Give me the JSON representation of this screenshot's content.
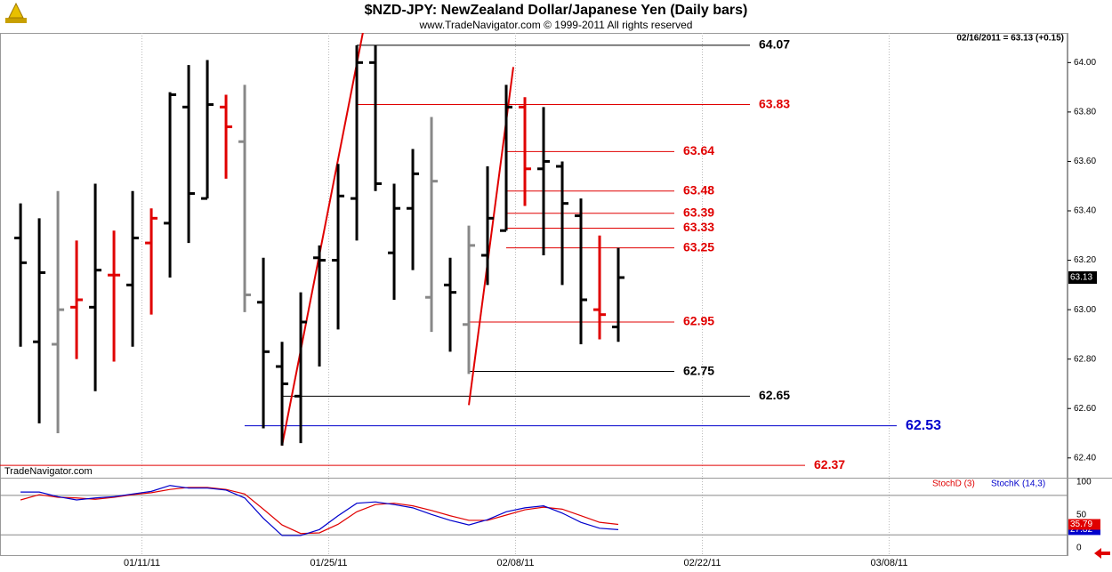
{
  "chart_data": [
    {
      "type": "ohlc",
      "title": "$NZD-JPY:  NewZealand Dollar/Japanese Yen  (Daily bars)",
      "subtitle": "www.TradeNavigator.com © 1999-2011 All rights reserved",
      "info": "02/16/2011 = 63.13 (+0.15)",
      "watermark": "TradeNavigator.com",
      "x": [
        0,
        1,
        2,
        3,
        4,
        5,
        6,
        7,
        8,
        9,
        10,
        11,
        12,
        13,
        14,
        15,
        16,
        17,
        18,
        19,
        20,
        21,
        22,
        23,
        24,
        25,
        26,
        27,
        28,
        29,
        30,
        31,
        32
      ],
      "open": [
        63.29,
        62.87,
        62.86,
        63.01,
        63.01,
        63.14,
        63.1,
        63.27,
        63.35,
        63.82,
        63.45,
        63.82,
        63.68,
        63.03,
        62.77,
        62.65,
        63.21,
        63.2,
        63.45,
        64.0,
        63.23,
        63.41,
        63.05,
        63.1,
        62.94,
        63.22,
        63.32,
        63.82,
        63.57,
        63.58,
        63.38,
        63.0,
        62.93
      ],
      "high": [
        63.43,
        63.37,
        63.48,
        63.28,
        63.51,
        63.32,
        63.48,
        63.41,
        63.88,
        63.99,
        64.01,
        63.87,
        63.91,
        63.21,
        62.87,
        63.07,
        63.26,
        63.59,
        64.07,
        64.07,
        63.51,
        63.65,
        63.78,
        63.21,
        63.34,
        63.58,
        63.91,
        63.86,
        63.82,
        63.6,
        63.45,
        63.3,
        63.25
      ],
      "low": [
        62.85,
        62.54,
        62.5,
        62.8,
        62.67,
        62.79,
        62.85,
        62.98,
        63.13,
        63.27,
        63.45,
        63.53,
        62.99,
        62.52,
        62.45,
        62.46,
        62.77,
        62.92,
        63.28,
        63.48,
        63.04,
        63.16,
        62.91,
        62.83,
        62.74,
        63.1,
        63.32,
        63.42,
        63.22,
        63.1,
        62.86,
        62.88,
        62.87
      ],
      "close": [
        63.19,
        63.15,
        63.0,
        63.04,
        63.16,
        63.14,
        63.29,
        63.37,
        63.87,
        63.47,
        63.83,
        63.74,
        63.06,
        62.83,
        62.7,
        62.95,
        63.2,
        63.46,
        64.0,
        63.51,
        63.41,
        63.55,
        63.52,
        63.07,
        63.26,
        63.37,
        63.82,
        63.57,
        63.6,
        63.43,
        63.04,
        62.98,
        63.13
      ],
      "colors": [
        "#000000",
        "#000000",
        "#888888",
        "#e00000",
        "#000000",
        "#e00000",
        "#000000",
        "#e00000",
        "#000000",
        "#000000",
        "#000000",
        "#e00000",
        "#888888",
        "#000000",
        "#000000",
        "#000000",
        "#000000",
        "#000000",
        "#000000",
        "#000000",
        "#000000",
        "#000000",
        "#888888",
        "#000000",
        "#888888",
        "#000000",
        "#000000",
        "#e00000",
        "#000000",
        "#000000",
        "#000000",
        "#e00000",
        "#000000"
      ],
      "levels": [
        {
          "value": 64.07,
          "color": "#000000"
        },
        {
          "value": 63.83,
          "color": "#e00000"
        },
        {
          "value": 63.64,
          "color": "#e00000"
        },
        {
          "value": 63.48,
          "color": "#e00000"
        },
        {
          "value": 63.39,
          "color": "#e00000"
        },
        {
          "value": 63.33,
          "color": "#e00000"
        },
        {
          "value": 63.25,
          "color": "#e00000"
        },
        {
          "value": 62.95,
          "color": "#e00000"
        },
        {
          "value": 62.75,
          "color": "#000000"
        },
        {
          "value": 62.65,
          "color": "#000000"
        },
        {
          "value": 62.53,
          "color": "#0000cc"
        },
        {
          "value": 62.37,
          "color": "#e00000"
        }
      ],
      "xlim": [
        -1.1,
        56.05
      ],
      "xticks": [
        {
          "value": 6.5,
          "label": "01/11/11"
        },
        {
          "value": 16.5,
          "label": "01/25/11"
        },
        {
          "value": 26.5,
          "label": "02/08/11"
        },
        {
          "value": 36.5,
          "label": "02/22/11"
        },
        {
          "value": 46.5,
          "label": "03/08/11"
        }
      ],
      "ylim": [
        62.32,
        64.12
      ],
      "yticks": [
        {
          "value": 62.4,
          "label": "62.40"
        },
        {
          "value": 62.6,
          "label": "62.60"
        },
        {
          "value": 62.8,
          "label": "62.80"
        },
        {
          "value": 63,
          "label": "63.00"
        },
        {
          "value": 63.2,
          "label": "63.20"
        },
        {
          "value": 63.4,
          "label": "63.40"
        },
        {
          "value": 63.6,
          "label": "63.60"
        },
        {
          "value": 63.8,
          "label": "63.80"
        },
        {
          "value": 64,
          "label": "64.00"
        }
      ]
    },
    {
      "type": "line",
      "ylim": [
        -12.2,
        106.8
      ],
      "yticks": [
        0,
        50,
        100
      ],
      "reference_lines": [
        80,
        20
      ],
      "series": [
        {
          "name": "StochD (3)",
          "color": "#e00000",
          "values": [
            73,
            81,
            77,
            76,
            74,
            77,
            81,
            84,
            89,
            92,
            92,
            89,
            82,
            59,
            35,
            22,
            23,
            36,
            55,
            66,
            68,
            64,
            57,
            49,
            42,
            42,
            50,
            58,
            62,
            59,
            49,
            39,
            35.79
          ]
        },
        {
          "name": "StochK (14,3)",
          "color": "#0000cc",
          "values": [
            85,
            85,
            78,
            73,
            76,
            78,
            82,
            86,
            95,
            91,
            91,
            88,
            76,
            45,
            19,
            19,
            28,
            49,
            68,
            70,
            66,
            61,
            51,
            42,
            35,
            43,
            55,
            61,
            64,
            53,
            39,
            30,
            27.82
          ]
        }
      ]
    }
  ]
}
